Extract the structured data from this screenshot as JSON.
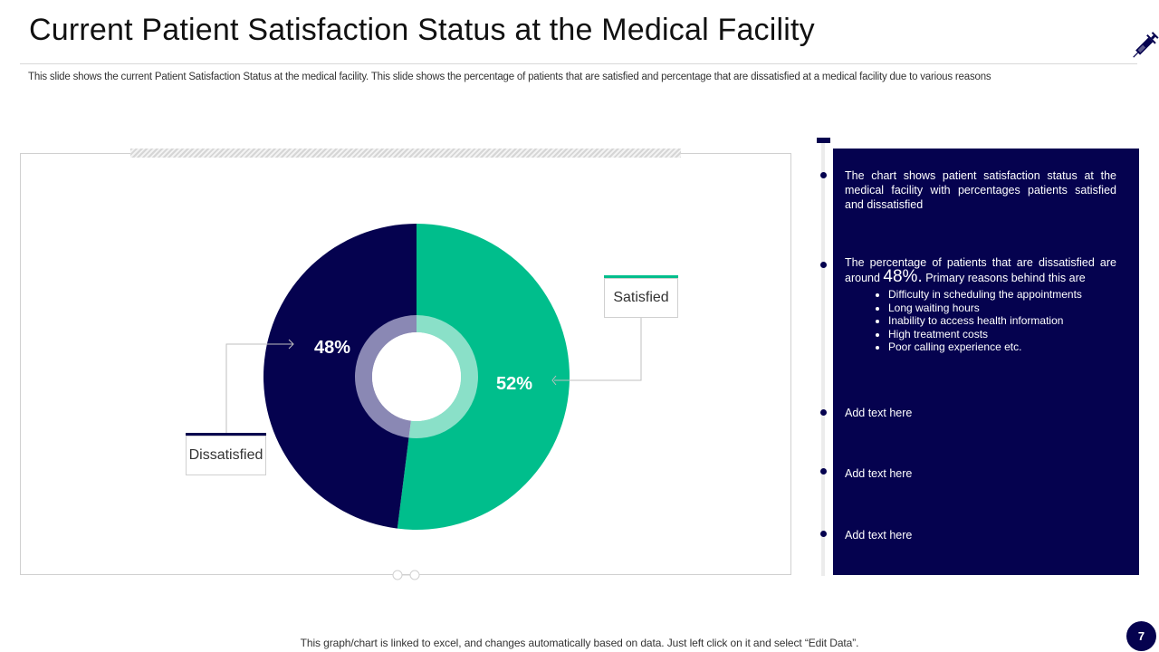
{
  "header": {
    "title": "Current Patient Satisfaction Status at the Medical Facility",
    "subtitle": "This slide shows the current Patient Satisfaction Status at the medical facility. This slide shows the percentage of patients that are satisfied and percentage that are dissatisfied at a medical facility due to various reasons"
  },
  "chart_data": {
    "type": "pie",
    "title": "",
    "categories": [
      "Satisfied",
      "Dissatisfied"
    ],
    "values": [
      52,
      48
    ],
    "labels": [
      "52%",
      "48%"
    ],
    "colors": [
      "#00be8c",
      "#05024f"
    ],
    "inner_ring_colors": [
      "#8ae0c8",
      "#8a88b4"
    ]
  },
  "callouts": {
    "satisfied": "Satisfied",
    "dissatisfied": "Dissatisfied"
  },
  "panel": {
    "item1": "The chart shows patient satisfaction status at the medical facility with percentages patients satisfied and dissatisfied",
    "item2_prefix": "The percentage of patients that are dissatisfied are around",
    "item2_value": "48%.",
    "item2_suffix": "Primary reasons behind this are",
    "reasons": [
      "Difficulty in scheduling the appointments",
      "Long waiting hours",
      "Inability to access health information",
      "High treatment costs",
      "Poor calling experience etc."
    ],
    "item3": "Add text here",
    "item4": "Add text here",
    "item5": "Add text here"
  },
  "footer": {
    "note": "This graph/chart is linked to excel, and changes automatically based on data. Just left click on it and select “Edit Data”.",
    "page_number": "7"
  },
  "colors": {
    "navy": "#05024f",
    "green": "#00be8c"
  }
}
